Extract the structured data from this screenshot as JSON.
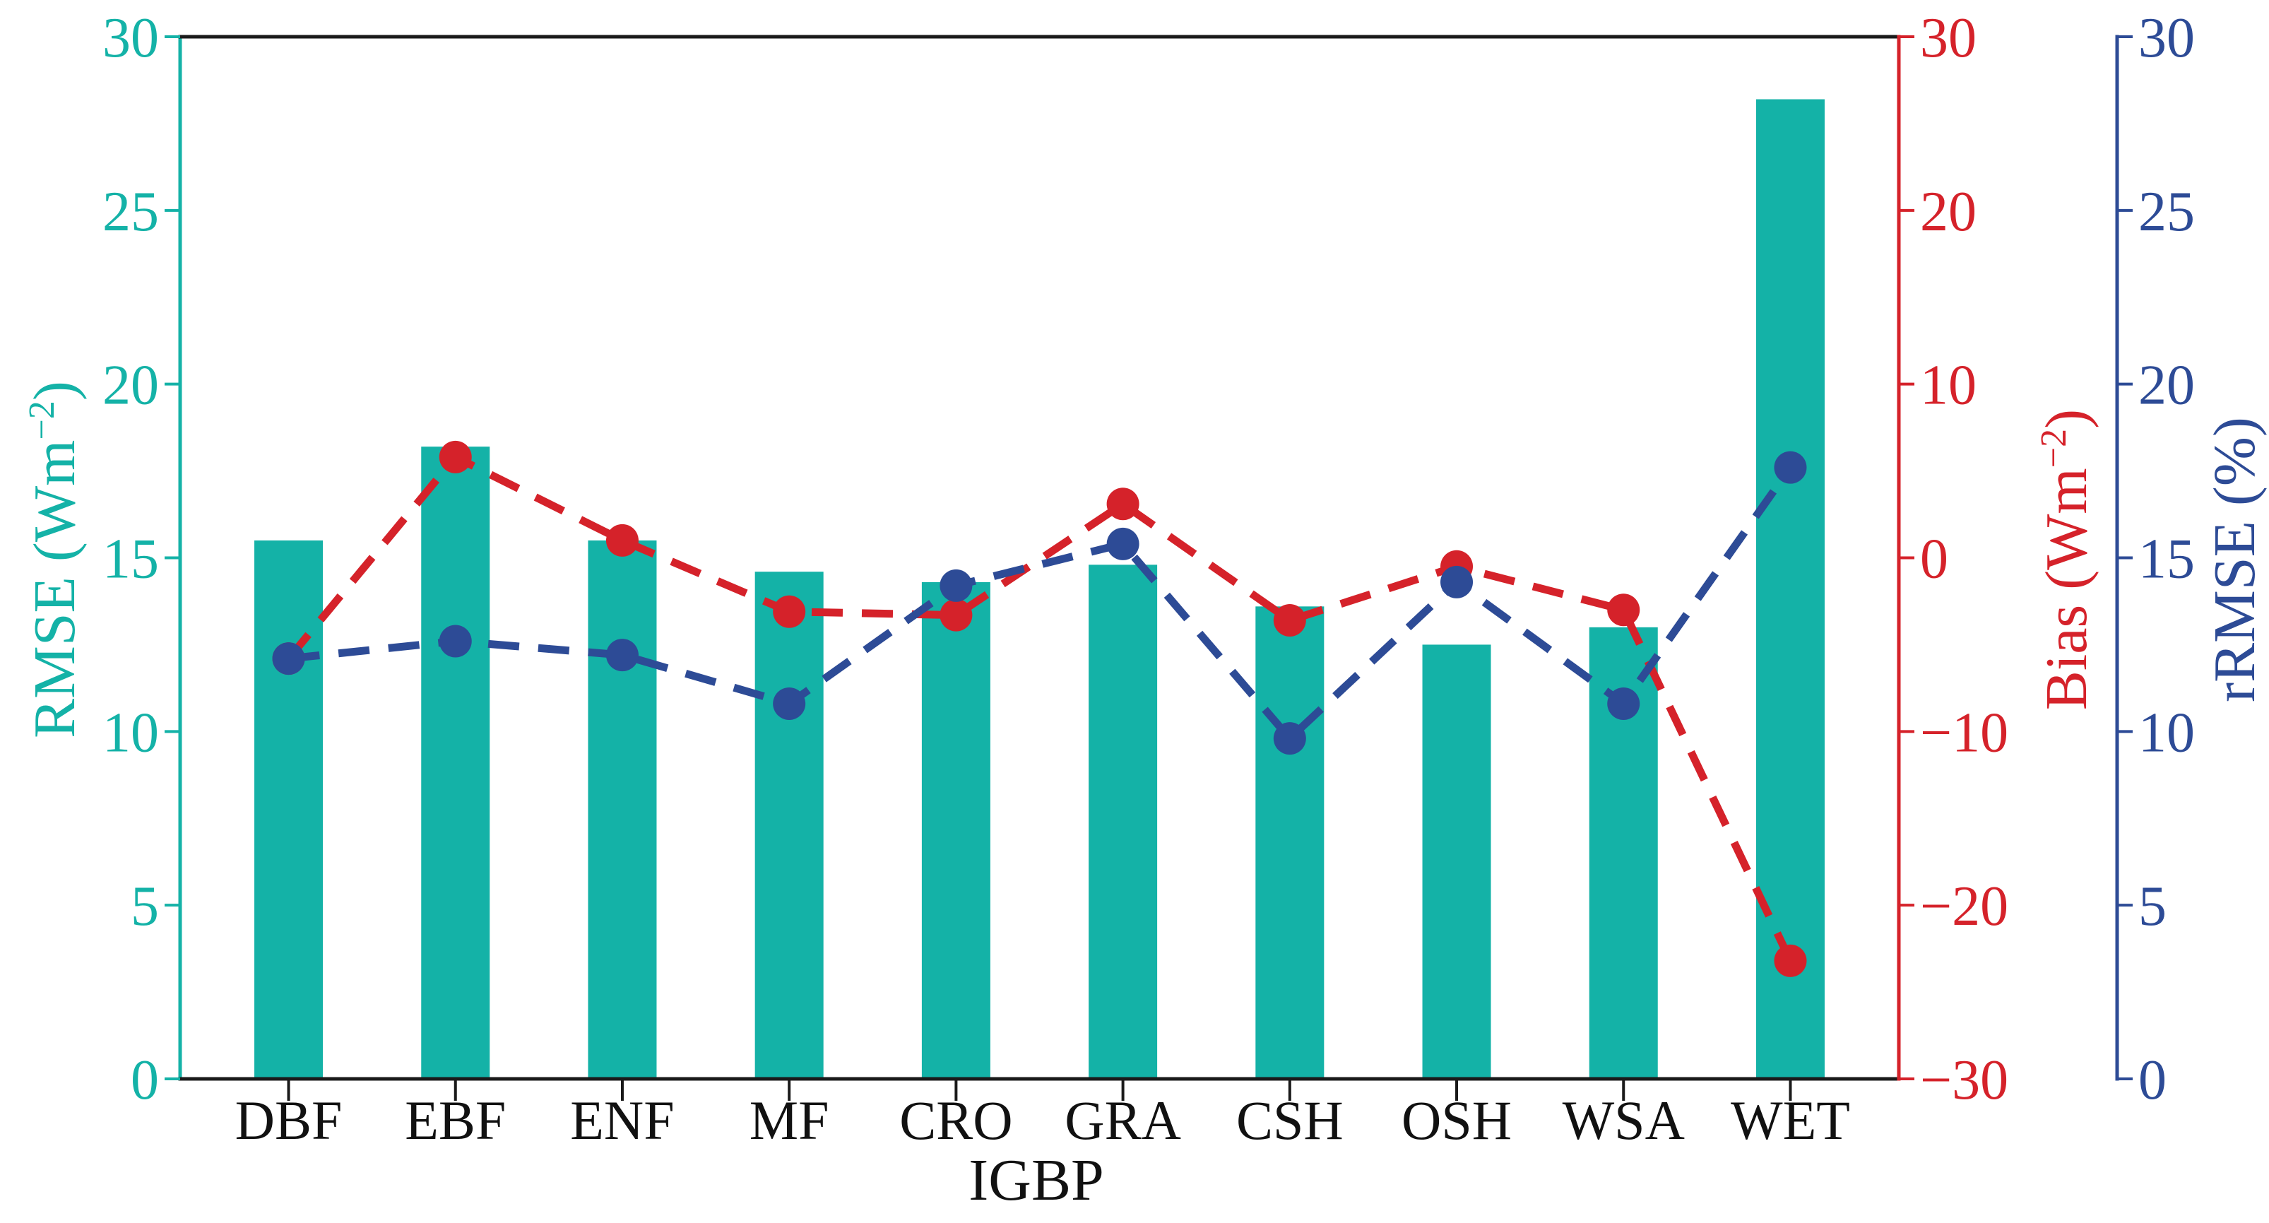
{
  "figure": {
    "background": "#ffffff",
    "text_color": "#111111",
    "spine_color": "#1a1a1a"
  },
  "chart_data": {
    "type": "bar",
    "subtype": "bar-with-two-dashed-line-overlays",
    "categories": [
      "DBF",
      "EBF",
      "ENF",
      "MF",
      "CRO",
      "GRA",
      "CSH",
      "OSH",
      "WSA",
      "WET"
    ],
    "xlabel": "IGBP",
    "grid": "off",
    "legend": "none",
    "series": [
      {
        "name": "RMSE",
        "type": "bar",
        "axis": "left",
        "color": "#14b2a7",
        "values": [
          15.5,
          18.2,
          15.5,
          14.6,
          14.3,
          14.8,
          13.6,
          12.5,
          13.0,
          28.2
        ]
      },
      {
        "name": "Bias",
        "type": "dashed-line-with-dots",
        "axis": "right_bias",
        "color": "#d5222a",
        "values": [
          -5.8,
          5.8,
          1.0,
          -3.1,
          -3.3,
          3.1,
          -3.6,
          -0.5,
          -3.0,
          -23.2
        ]
      },
      {
        "name": "rRMSE",
        "type": "dashed-line-with-dots",
        "axis": "right_rrmse",
        "color": "#2d4b96",
        "values": [
          12.1,
          12.6,
          12.2,
          10.8,
          14.2,
          15.4,
          9.8,
          14.3,
          10.8,
          17.6
        ]
      }
    ],
    "axes": {
      "left": {
        "label_pre": "RMSE (Wm",
        "label_sup": "−2",
        "label_post": ")",
        "color": "#14b2a7",
        "min": 0,
        "max": 30,
        "tick_values": [
          0,
          5,
          10,
          15,
          20,
          25,
          30
        ],
        "tick_labels": [
          "0",
          "5",
          "10",
          "15",
          "20",
          "25",
          "30"
        ]
      },
      "right_bias": {
        "label_pre": "Bias (Wm",
        "label_sup": "−2",
        "label_post": ")",
        "color": "#d5222a",
        "min": -30,
        "max": 30,
        "tick_values": [
          30,
          20,
          10,
          0,
          -10,
          -20,
          -30
        ],
        "tick_labels": [
          "30",
          "20",
          "10",
          "0",
          "−10",
          "−20",
          "−30"
        ]
      },
      "right_rrmse": {
        "label_pre": "rRMSE (%)",
        "label_sup": "",
        "label_post": "",
        "color": "#2d4b96",
        "min": 0,
        "max": 30,
        "tick_values": [
          0,
          5,
          10,
          15,
          20,
          25,
          30
        ],
        "tick_labels": [
          "0",
          "5",
          "10",
          "15",
          "20",
          "25",
          "30"
        ]
      },
      "bottom": {
        "label": "IGBP",
        "color": "#111111"
      }
    }
  }
}
